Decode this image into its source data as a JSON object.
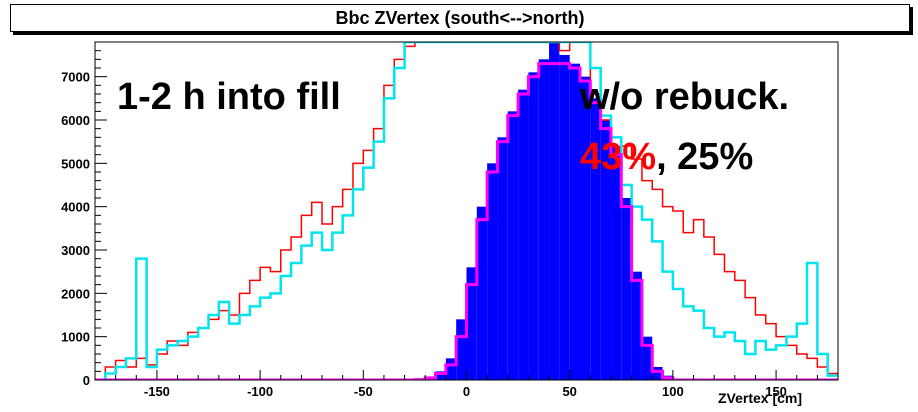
{
  "title": "Bbc ZVertex (south<-->north)",
  "annotations": {
    "left": "1-2 h into fill",
    "right_line1": "w/o rebuck.",
    "right_line2_red": "43%",
    "right_line2_rest": ", 25%"
  },
  "chart_data": {
    "type": "line",
    "title": "Bbc ZVertex (south<-->north)",
    "xlabel": "ZVertex [cm]",
    "ylabel": "",
    "xlim": [
      -180,
      180
    ],
    "ylim": [
      0,
      7800
    ],
    "x_ticks": [
      -150,
      -100,
      -50,
      0,
      50,
      100,
      150
    ],
    "y_ticks": [
      0,
      1000,
      2000,
      3000,
      4000,
      5000,
      6000,
      7000
    ],
    "bin_width": 5,
    "bin_start": -180,
    "series": [
      {
        "style": "filled-histogram",
        "color": "#0000ff",
        "values": [
          0,
          0,
          0,
          0,
          0,
          0,
          0,
          0,
          0,
          0,
          0,
          0,
          0,
          0,
          0,
          0,
          0,
          0,
          0,
          0,
          0,
          0,
          0,
          0,
          0,
          0,
          0,
          0,
          0,
          0,
          0,
          20,
          80,
          200,
          500,
          1400,
          2600,
          4000,
          5000,
          5600,
          6200,
          6700,
          7100,
          7400,
          7800,
          7500,
          7300,
          7000,
          6500,
          6000,
          5400,
          4200,
          2500,
          1000,
          300,
          100,
          30,
          0,
          0,
          0,
          0,
          0,
          0,
          0,
          0,
          0,
          0,
          0,
          0,
          0,
          0,
          0,
          0
        ]
      },
      {
        "style": "step-line",
        "color": "#ff0000",
        "values": [
          0,
          300,
          450,
          300,
          500,
          350,
          600,
          900,
          800,
          1100,
          1200,
          1400,
          1600,
          1500,
          2000,
          2300,
          2600,
          2500,
          3000,
          3300,
          3800,
          4100,
          3600,
          4000,
          4400,
          5000,
          5300,
          5800,
          6800,
          7400,
          7700,
          7800,
          7800,
          7800,
          7800,
          7800,
          7800,
          7800,
          7800,
          7800,
          7800,
          7800,
          7800,
          7800,
          7800,
          7600,
          7800,
          7800,
          6600,
          6000,
          5200,
          5400,
          5100,
          4600,
          4400,
          4000,
          3900,
          3400,
          3700,
          3300,
          2900,
          2500,
          2300,
          1900,
          1500,
          1300,
          1000,
          800,
          600,
          500,
          300,
          150
        ]
      },
      {
        "style": "step-line",
        "color": "#00e5ee",
        "values": [
          0,
          150,
          300,
          500,
          2800,
          300,
          700,
          800,
          900,
          1000,
          1200,
          1500,
          1800,
          1300,
          1500,
          1700,
          1900,
          2000,
          2400,
          2700,
          3100,
          3400,
          3000,
          3400,
          3800,
          4400,
          4900,
          5500,
          6500,
          7200,
          7800,
          7800,
          7800,
          7800,
          7800,
          7800,
          7800,
          7800,
          7800,
          7800,
          7800,
          7800,
          7800,
          7800,
          7800,
          7800,
          7800,
          7800,
          7200,
          6100,
          5600,
          4500,
          4000,
          3700,
          3200,
          2500,
          2100,
          1700,
          1600,
          1200,
          1000,
          1100,
          900,
          600,
          900,
          700,
          800,
          1000,
          1300,
          2700,
          600,
          100
        ]
      },
      {
        "style": "step-line",
        "color": "#ff00ff",
        "values": [
          0,
          0,
          0,
          0,
          0,
          0,
          0,
          0,
          0,
          0,
          0,
          0,
          0,
          0,
          0,
          0,
          0,
          0,
          0,
          0,
          0,
          0,
          0,
          0,
          0,
          0,
          0,
          0,
          0,
          0,
          0,
          10,
          50,
          150,
          350,
          1000,
          2200,
          3700,
          4800,
          5500,
          6100,
          6600,
          7000,
          7300,
          7300,
          7300,
          7200,
          6900,
          6400,
          5800,
          5200,
          4000,
          2300,
          800,
          200,
          50,
          0,
          0,
          0,
          0,
          0,
          0,
          0,
          0,
          0,
          0,
          0,
          0,
          0,
          0,
          0,
          0
        ]
      }
    ],
    "legend": "none",
    "grid": false
  }
}
